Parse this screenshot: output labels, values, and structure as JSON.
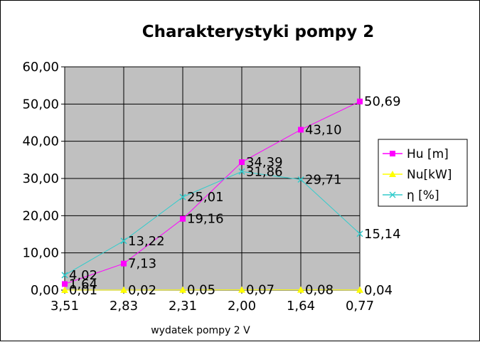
{
  "chart_data": {
    "type": "line",
    "title": "Charakterystyki pompy 2",
    "xlabel": "wydatek pompy 2 V",
    "ylabel": "",
    "categories": [
      "3,51",
      "2,83",
      "2,31",
      "2,00",
      "1,64",
      "0,77"
    ],
    "ylim": [
      0,
      60
    ],
    "y_ticks": [
      "0,00",
      "10,00",
      "20,00",
      "30,00",
      "40,00",
      "50,00",
      "60,00"
    ],
    "grid": true,
    "legend_position": "right",
    "plot_background": "#c0c0c0",
    "series": [
      {
        "name": "Hu [m]",
        "values": [
          1.64,
          7.13,
          19.16,
          34.39,
          43.1,
          50.69
        ],
        "labels": [
          "1,64",
          "7,13",
          "19,16",
          "34,39",
          "43,10",
          "50,69"
        ],
        "color": "#ff00ff",
        "marker": "square"
      },
      {
        "name": "Nu[kW]",
        "values": [
          0.01,
          0.02,
          0.05,
          0.07,
          0.08,
          0.04
        ],
        "labels": [
          "0,01",
          "0,02",
          "0,05",
          "0,07",
          "0,08",
          "0,04"
        ],
        "color": "#ffff00",
        "marker": "triangle"
      },
      {
        "name": "η [%]",
        "values": [
          4.02,
          13.22,
          25.01,
          31.86,
          29.71,
          15.14
        ],
        "labels": [
          "4,02",
          "13,22",
          "25,01",
          "31,86",
          "29,71",
          "15,14"
        ],
        "color": "#33cccc",
        "marker": "x"
      }
    ]
  }
}
